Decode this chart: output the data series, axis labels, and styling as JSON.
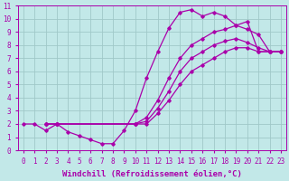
{
  "xlabel": "Windchill (Refroidissement éolien,°C)",
  "xlim": [
    -0.5,
    23.5
  ],
  "ylim": [
    0,
    11
  ],
  "xticks": [
    0,
    1,
    2,
    3,
    4,
    5,
    6,
    7,
    8,
    9,
    10,
    11,
    12,
    13,
    14,
    15,
    16,
    17,
    18,
    19,
    20,
    21,
    22,
    23
  ],
  "yticks": [
    0,
    1,
    2,
    3,
    4,
    5,
    6,
    7,
    8,
    9,
    10,
    11
  ],
  "bg_color": "#c2e8e8",
  "grid_color": "#a0c8c8",
  "line_color": "#aa00aa",
  "series": [
    {
      "x": [
        0,
        1,
        2,
        3,
        4,
        5,
        6,
        7,
        8,
        9,
        10,
        11,
        12,
        13,
        14,
        15,
        16,
        17,
        18,
        19,
        20,
        21,
        22,
        23
      ],
      "y": [
        2,
        2,
        1.5,
        2,
        1.4,
        1.1,
        0.8,
        0.5,
        0.5,
        1.5,
        3.0,
        5.5,
        7.5,
        9.3,
        10.5,
        10.7,
        10.2,
        10.5,
        10.2,
        9.5,
        9.8,
        7.5,
        7.5,
        7.5
      ]
    },
    {
      "x": [
        2,
        3,
        10,
        11,
        12,
        13,
        14,
        15,
        16,
        17,
        18,
        19,
        20,
        21,
        22,
        23
      ],
      "y": [
        2,
        2,
        2,
        2.5,
        3.8,
        5.5,
        7.0,
        8.0,
        8.5,
        9.0,
        9.2,
        9.5,
        9.2,
        8.8,
        7.5,
        7.5
      ]
    },
    {
      "x": [
        2,
        3,
        10,
        11,
        12,
        13,
        14,
        15,
        16,
        17,
        18,
        19,
        20,
        21,
        22,
        23
      ],
      "y": [
        2,
        2,
        2,
        2.2,
        3.2,
        4.5,
        6.0,
        7.0,
        7.5,
        8.0,
        8.3,
        8.5,
        8.2,
        7.8,
        7.5,
        7.5
      ]
    },
    {
      "x": [
        2,
        3,
        10,
        11,
        12,
        13,
        14,
        15,
        16,
        17,
        18,
        19,
        20,
        21,
        22,
        23
      ],
      "y": [
        2,
        2,
        2,
        2.0,
        2.8,
        3.8,
        5.0,
        6.0,
        6.5,
        7.0,
        7.5,
        7.8,
        7.8,
        7.5,
        7.5,
        7.5
      ]
    }
  ],
  "marker": "D",
  "markersize": 1.8,
  "linewidth": 0.9,
  "font_family": "monospace",
  "xlabel_fontsize": 6.5,
  "tick_fontsize": 5.5
}
